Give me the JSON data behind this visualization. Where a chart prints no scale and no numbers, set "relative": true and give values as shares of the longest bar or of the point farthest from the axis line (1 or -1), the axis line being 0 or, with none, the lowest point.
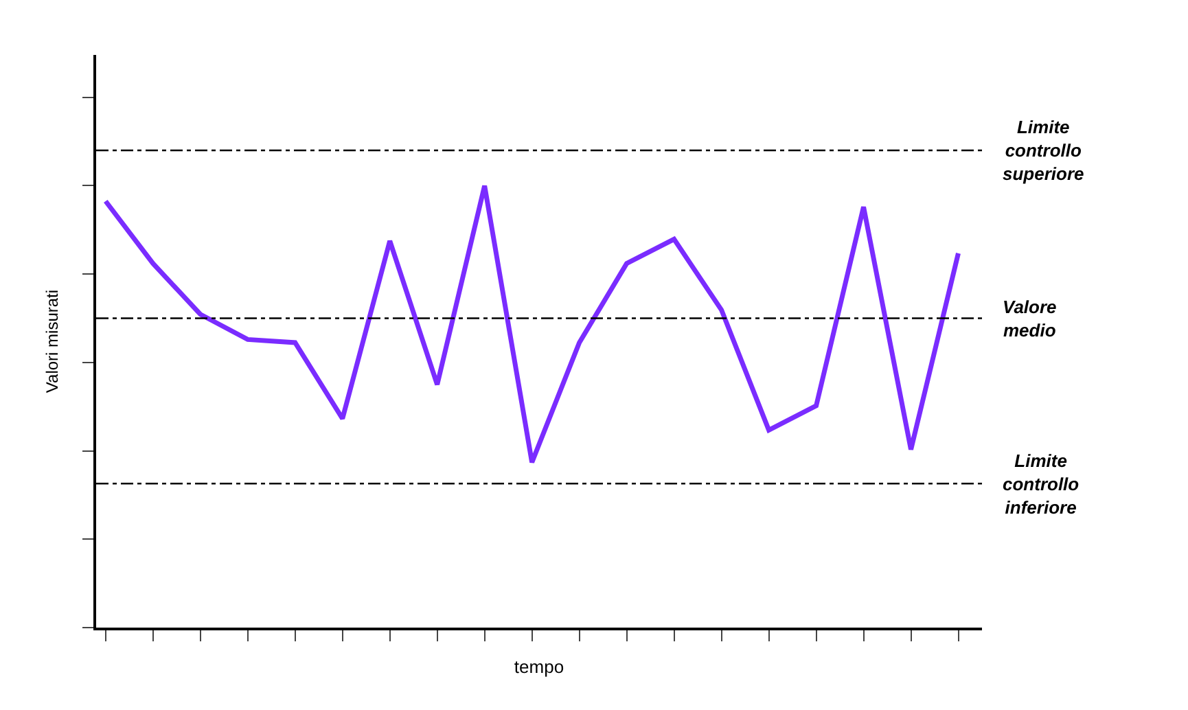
{
  "chart_data": {
    "type": "line",
    "relative": true,
    "xlabel": "tempo",
    "ylabel": "Valori misurati",
    "categories": [
      null,
      null,
      null,
      null,
      null,
      null,
      null,
      null,
      null,
      null,
      null,
      null,
      null,
      null,
      null,
      null,
      null,
      null,
      null
    ],
    "series": [
      {
        "color": "#7a2cff",
        "values": [
          0.965,
          0.824,
          0.709,
          0.652,
          0.645,
          0.473,
          0.875,
          0.55,
          1.0,
          0.374,
          0.645,
          0.824,
          0.879,
          0.719,
          0.447,
          0.502,
          0.952,
          0.403,
          0.847
        ]
      }
    ],
    "ref_lines": [
      {
        "axis": "y",
        "value": 1.08,
        "label": "Limite controllo superiore",
        "color": "#000000",
        "line_style": "dashed"
      },
      {
        "axis": "y",
        "value": 0.7,
        "label": "Valore medio",
        "color": "#000000",
        "line_style": "dashed"
      },
      {
        "axis": "y",
        "value": 0.326,
        "label": "Limite controllo inferiore",
        "color": "#000000",
        "line_style": "dashed"
      }
    ],
    "legend": false,
    "marker": "none",
    "line_style": "solid",
    "tick_labels": false
  }
}
